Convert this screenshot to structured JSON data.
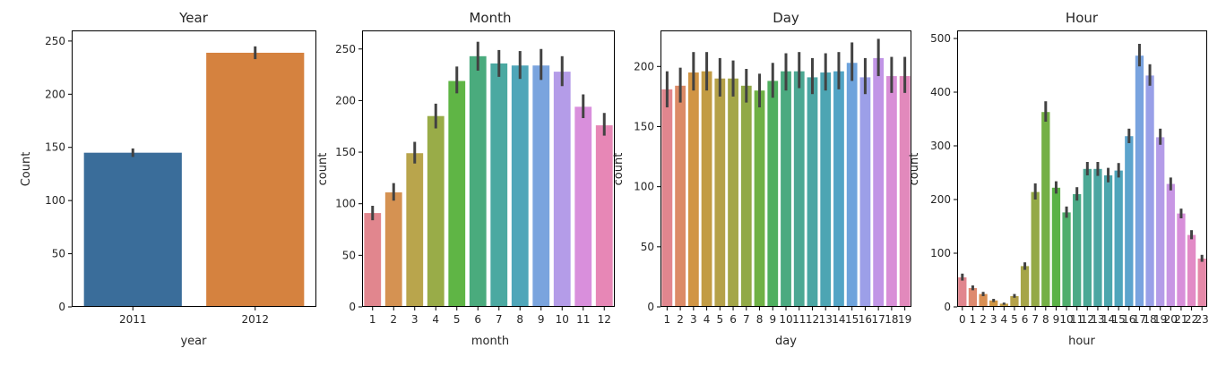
{
  "chart_data": [
    {
      "type": "bar",
      "title": "Year",
      "xlabel": "year",
      "ylabel": "Count",
      "ylim": [
        0,
        260
      ],
      "yticks": [
        0,
        50,
        100,
        150,
        200,
        250
      ],
      "categories": [
        "2011",
        "2012"
      ],
      "values": [
        145,
        239
      ],
      "error_low": [
        141,
        233
      ],
      "error_high": [
        149,
        245
      ],
      "colors": [
        "#3a6d9a",
        "#d5823f"
      ],
      "grid": false
    },
    {
      "type": "bar",
      "title": "Month",
      "xlabel": "month",
      "ylabel": "count",
      "ylim": [
        0,
        268
      ],
      "yticks": [
        0,
        50,
        100,
        150,
        200,
        250
      ],
      "categories": [
        "1",
        "2",
        "3",
        "4",
        "5",
        "6",
        "7",
        "8",
        "9",
        "10",
        "11",
        "12"
      ],
      "values": [
        91,
        111,
        149,
        185,
        219,
        243,
        236,
        234,
        234,
        228,
        194,
        176
      ],
      "error_low": [
        84,
        103,
        139,
        173,
        207,
        229,
        223,
        221,
        220,
        214,
        183,
        166
      ],
      "error_high": [
        98,
        120,
        160,
        197,
        233,
        257,
        249,
        248,
        250,
        243,
        206,
        188
      ],
      "colors": [
        "#e1868e",
        "#d59252",
        "#b9a54c",
        "#99ac48",
        "#5fb545",
        "#4aab7d",
        "#4ba9a1",
        "#4fa6b9",
        "#7aa4de",
        "#b49ce8",
        "#d98fdc",
        "#e787b6"
      ],
      "grid": false
    },
    {
      "type": "bar",
      "title": "Day",
      "xlabel": "day",
      "ylabel": "count",
      "ylim": [
        0,
        230
      ],
      "yticks": [
        0,
        50,
        100,
        150,
        200
      ],
      "categories": [
        "1",
        "2",
        "3",
        "4",
        "5",
        "6",
        "7",
        "8",
        "9",
        "10",
        "11",
        "12",
        "13",
        "14",
        "15",
        "16",
        "17",
        "18",
        "19"
      ],
      "values": [
        181,
        184,
        195,
        196,
        190,
        190,
        184,
        180,
        188,
        196,
        196,
        191,
        195,
        196,
        203,
        191,
        207,
        192,
        192
      ],
      "error_low": [
        166,
        170,
        180,
        180,
        175,
        175,
        170,
        166,
        174,
        180,
        182,
        177,
        180,
        181,
        188,
        177,
        192,
        178,
        178
      ],
      "error_high": [
        196,
        199,
        212,
        212,
        207,
        205,
        198,
        194,
        203,
        211,
        212,
        207,
        211,
        212,
        220,
        207,
        223,
        208,
        208
      ],
      "colors": [
        "#e1868e",
        "#dc8b67",
        "#d19544",
        "#c29c44",
        "#b5a149",
        "#a4a648",
        "#91a946",
        "#6fb145",
        "#4faf5f",
        "#4baa80",
        "#4ca893",
        "#4ba6a4",
        "#4da5b3",
        "#52a4c5",
        "#6ea3dc",
        "#9c9fe8",
        "#c195e6",
        "#d98fd7",
        "#e289bc"
      ],
      "grid": false
    },
    {
      "type": "bar",
      "title": "Hour",
      "xlabel": "hour",
      "ylabel": "count",
      "ylim": [
        0,
        515
      ],
      "yticks": [
        0,
        100,
        200,
        300,
        400,
        500
      ],
      "categories": [
        "0",
        "1",
        "2",
        "3",
        "4",
        "5",
        "6",
        "7",
        "8",
        "9",
        "10",
        "11",
        "12",
        "13",
        "14",
        "15",
        "16",
        "17",
        "18",
        "19",
        "20",
        "21",
        "22",
        "23"
      ],
      "values": [
        55,
        35,
        24,
        12,
        6,
        20,
        76,
        214,
        363,
        222,
        176,
        210,
        257,
        257,
        245,
        254,
        318,
        468,
        431,
        316,
        229,
        174,
        134,
        90
      ],
      "error_low": [
        49,
        31,
        20,
        9,
        4,
        17,
        69,
        200,
        345,
        211,
        166,
        198,
        245,
        244,
        232,
        241,
        305,
        448,
        412,
        302,
        217,
        165,
        126,
        84
      ],
      "error_high": [
        62,
        40,
        28,
        15,
        8,
        24,
        83,
        230,
        383,
        234,
        187,
        223,
        270,
        270,
        259,
        268,
        332,
        490,
        452,
        332,
        241,
        183,
        143,
        97
      ],
      "colors": [
        "#e1868e",
        "#de8a6f",
        "#d98f53",
        "#d09644",
        "#c29c44",
        "#b4a149",
        "#a6a548",
        "#94a946",
        "#74b045",
        "#5ab246",
        "#4fae6c",
        "#4baa86",
        "#4ba895",
        "#4ca6a2",
        "#4ca6ad",
        "#4fa5bb",
        "#5ca4cd",
        "#79a3df",
        "#99a0e8",
        "#b49ce8",
        "#c896e4",
        "#d88fda",
        "#e28bc6",
        "#e588a8"
      ],
      "grid": false
    }
  ]
}
